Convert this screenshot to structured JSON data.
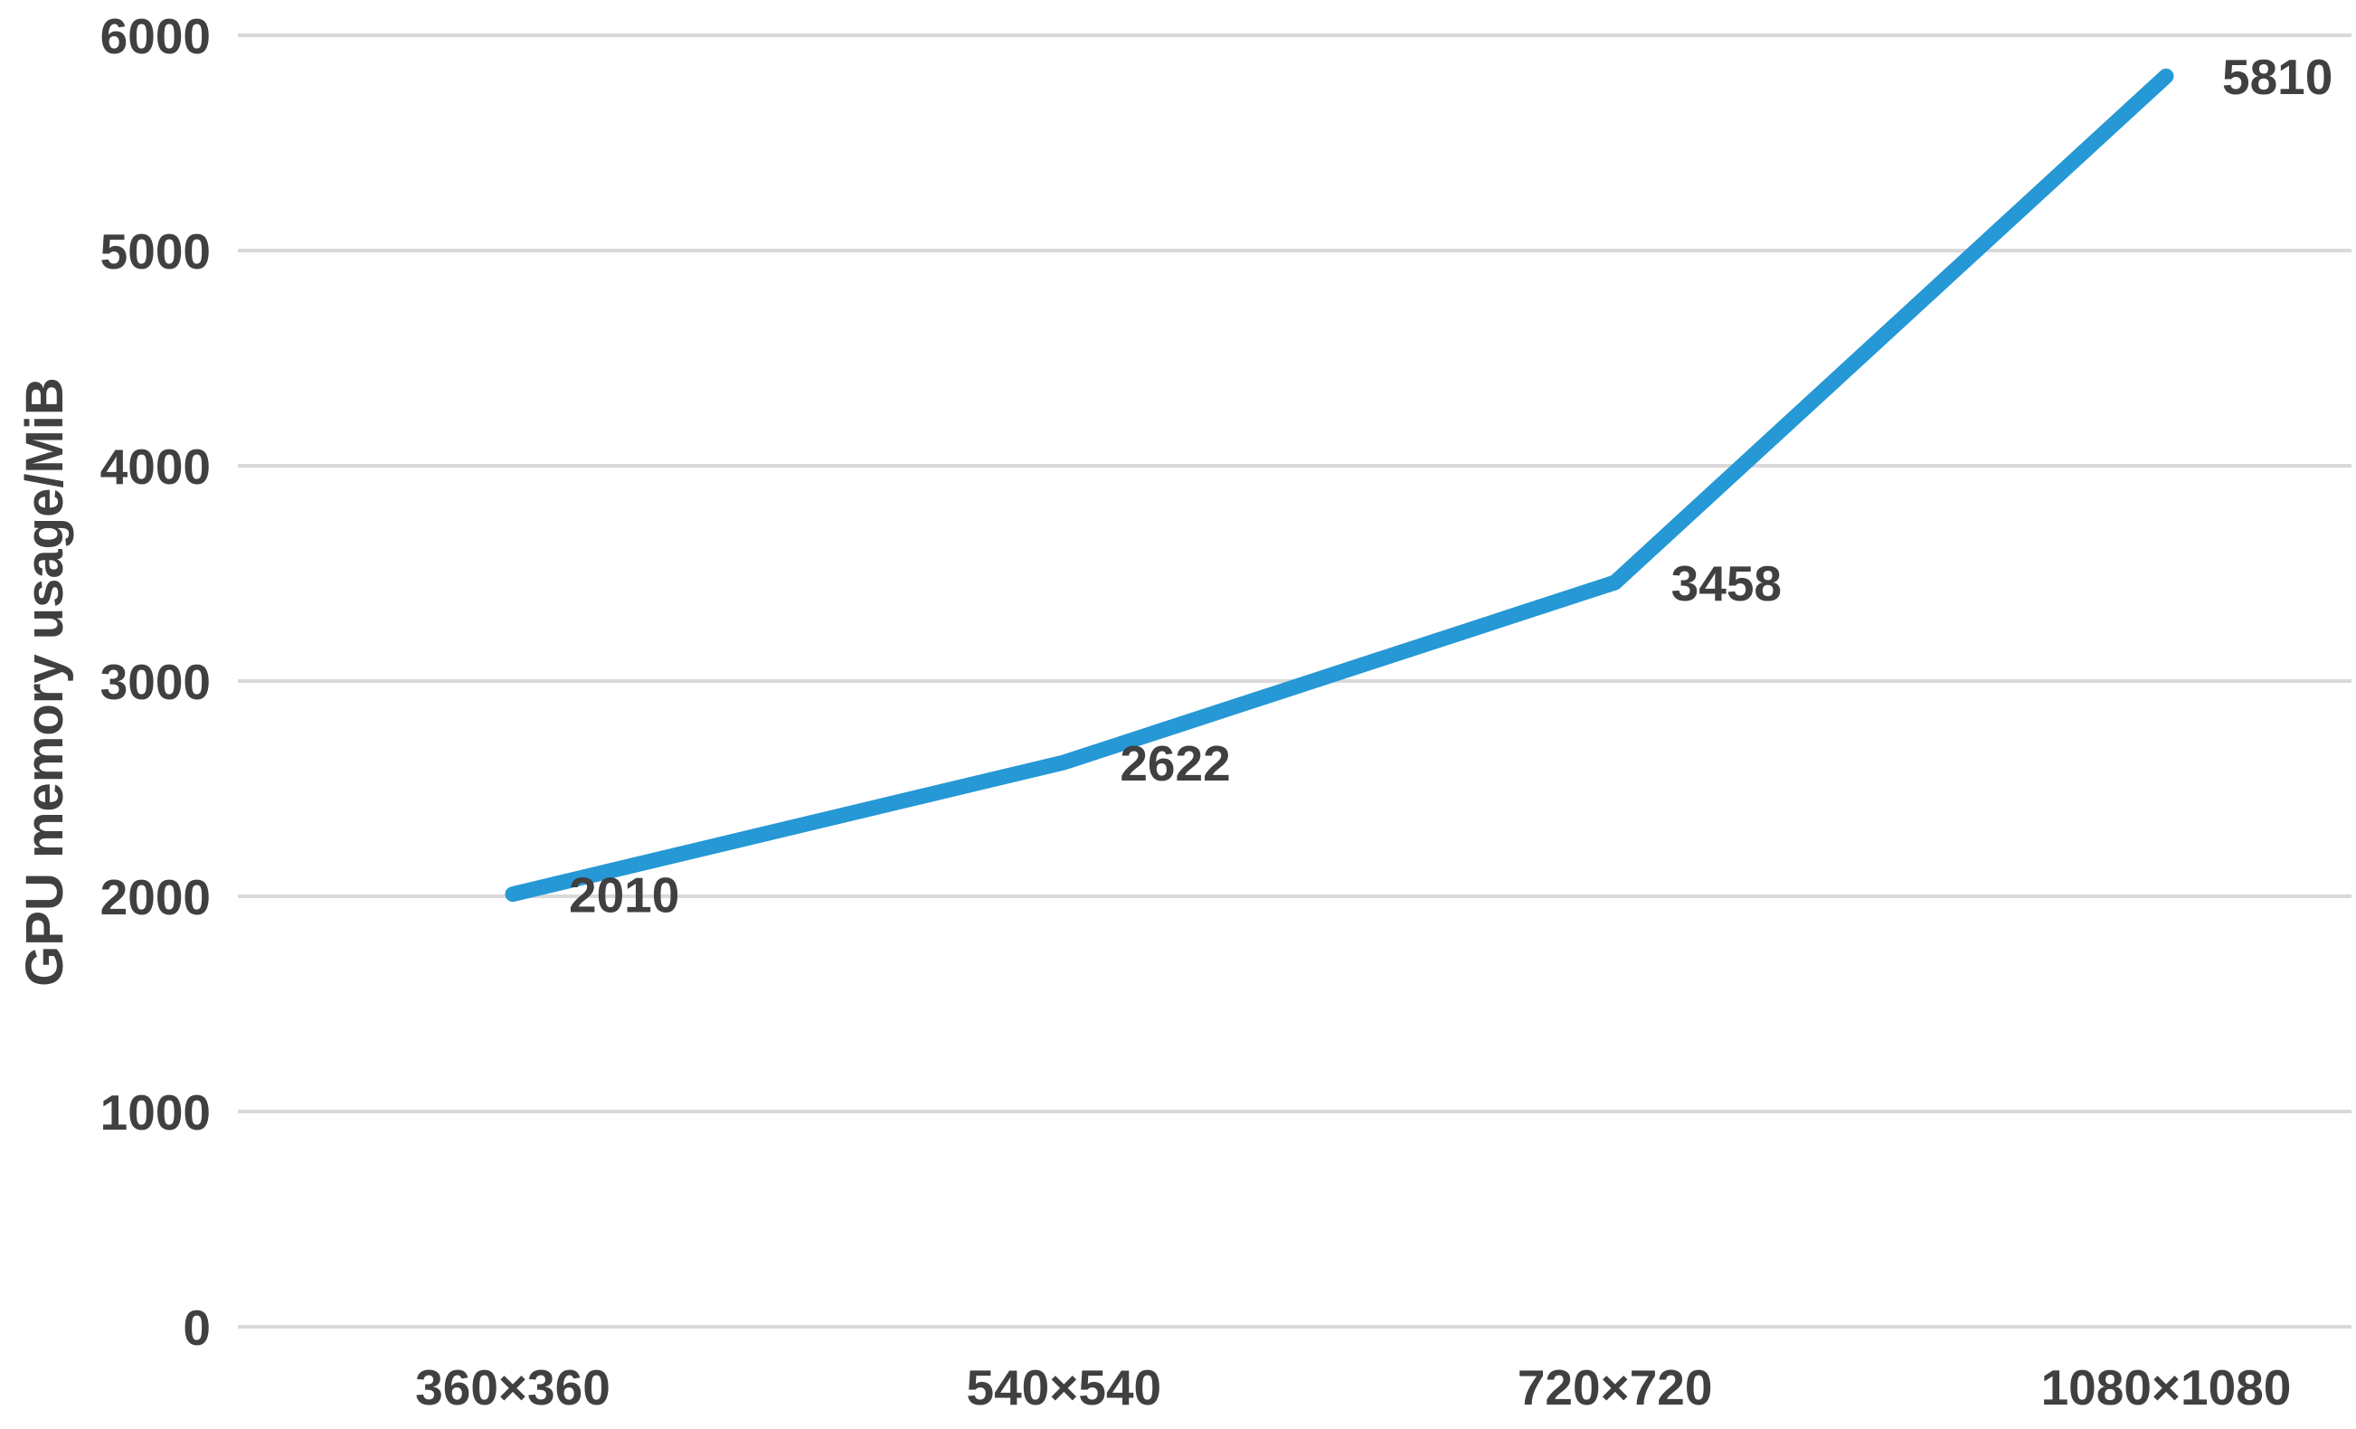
{
  "chart_data": {
    "type": "line",
    "categories": [
      "360×360",
      "540×540",
      "720×720",
      "1080×1080"
    ],
    "series": [
      {
        "name": "GPU memory usage",
        "values": [
          2010,
          2622,
          3458,
          5810
        ]
      }
    ],
    "data_labels": [
      "2010",
      "2622",
      "3458",
      "5810"
    ],
    "title": "",
    "xlabel": "",
    "ylabel": "GPU memory usage/MiB",
    "ylim": [
      0,
      6000
    ],
    "ytick_step": 1000,
    "yticks": [
      "0",
      "1000",
      "2000",
      "3000",
      "4000",
      "5000",
      "6000"
    ],
    "grid": true,
    "legend_position": "none",
    "colors": {
      "line": "#2598D5",
      "grid": "#D9D9D9",
      "text": "#404040"
    }
  }
}
